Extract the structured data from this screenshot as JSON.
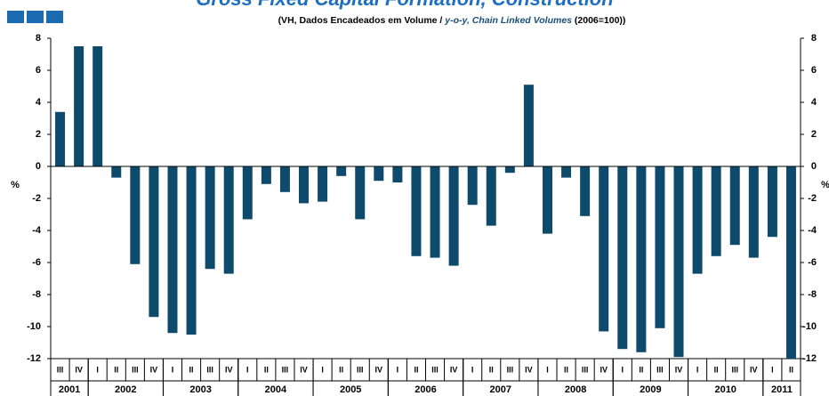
{
  "chart_data": {
    "type": "bar",
    "title": "Gross Fixed Capital Formation, Construction",
    "subtitle": [
      "(VH, Dados Encadeados em Volume / ",
      "y-o-y, Chain Linked Volumes",
      " (2006=100))"
    ],
    "ylabel": "%",
    "y2label": "%",
    "years": [
      {
        "year": "2001",
        "quarters": [
          "III",
          "IV"
        ]
      },
      {
        "year": "2002",
        "quarters": [
          "I",
          "II",
          "III",
          "IV"
        ]
      },
      {
        "year": "2003",
        "quarters": [
          "I",
          "II",
          "III",
          "IV"
        ]
      },
      {
        "year": "2004",
        "quarters": [
          "I",
          "II",
          "III",
          "IV"
        ]
      },
      {
        "year": "2005",
        "quarters": [
          "I",
          "II",
          "III",
          "IV"
        ]
      },
      {
        "year": "2006",
        "quarters": [
          "I",
          "II",
          "III",
          "IV"
        ]
      },
      {
        "year": "2007",
        "quarters": [
          "I",
          "II",
          "III",
          "IV"
        ]
      },
      {
        "year": "2008",
        "quarters": [
          "I",
          "II",
          "III",
          "IV"
        ]
      },
      {
        "year": "2009",
        "quarters": [
          "I",
          "II",
          "III",
          "IV"
        ]
      },
      {
        "year": "2010",
        "quarters": [
          "I",
          "II",
          "III",
          "IV"
        ]
      },
      {
        "year": "2011",
        "quarters": [
          "I",
          "II"
        ]
      }
    ],
    "values": [
      3.4,
      7.5,
      7.5,
      -0.7,
      -6.1,
      -9.4,
      -10.4,
      -10.5,
      -6.4,
      -6.7,
      -3.3,
      -1.1,
      -1.6,
      -2.3,
      -2.2,
      -0.6,
      -3.3,
      -0.9,
      -1.0,
      -5.6,
      -5.7,
      -6.2,
      -2.4,
      -3.7,
      -0.4,
      5.1,
      -4.2,
      -0.7,
      -3.1,
      -10.3,
      -11.4,
      -11.6,
      -10.1,
      -11.9,
      -6.7,
      -5.6,
      -4.9,
      -5.7,
      -4.4,
      -12.0
    ],
    "color": "#0d4a6b",
    "ylim": [
      -12,
      8
    ],
    "yticks": [
      -12,
      -10,
      -8,
      -6,
      -4,
      -2,
      0,
      2,
      4,
      6,
      8
    ],
    "y2lim": [
      -12,
      8
    ],
    "y2ticks": [
      -12,
      -10,
      -8,
      -6,
      -4,
      -2,
      0,
      2,
      4,
      6,
      8
    ]
  }
}
